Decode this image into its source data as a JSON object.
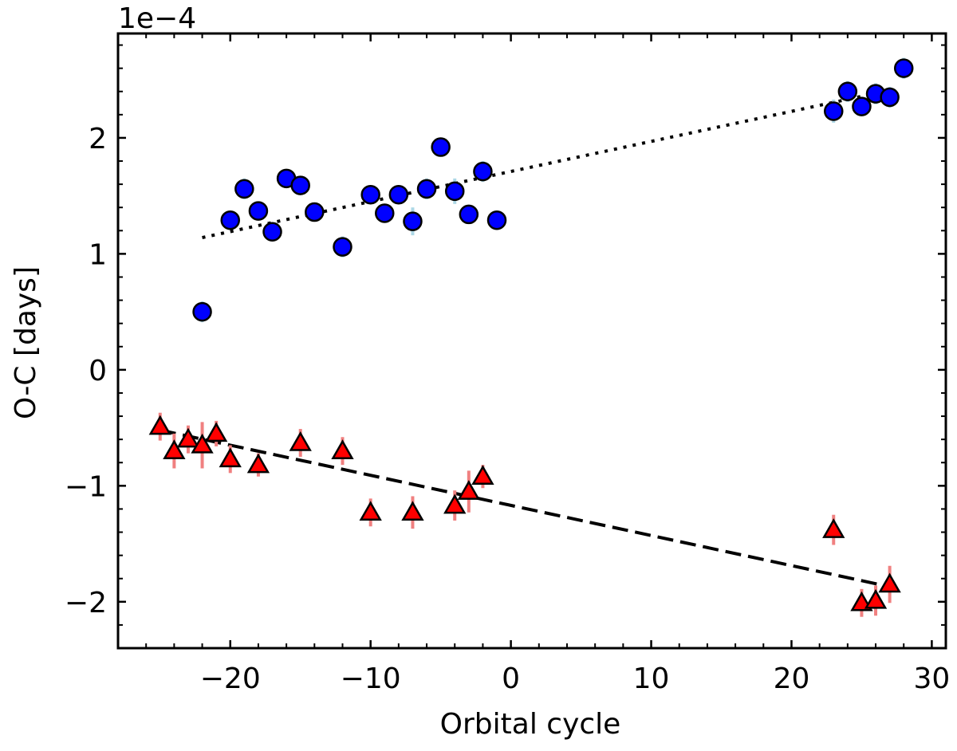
{
  "chart_data": {
    "type": "scatter",
    "title": "",
    "offset_label": "1e−4",
    "xlabel": "Orbital cycle",
    "ylabel": "O-C [days]",
    "xlim": [
      -28,
      31
    ],
    "ylim": [
      -2.4,
      2.9
    ],
    "y_scale_factor": 0.0001,
    "x_ticks": [
      -20,
      -10,
      0,
      10,
      20,
      30
    ],
    "x_tick_labels": [
      "−20",
      "−10",
      "0",
      "10",
      "20",
      "30"
    ],
    "y_ticks": [
      -2,
      -1,
      0,
      1,
      2
    ],
    "y_tick_labels": [
      "−2",
      "−1",
      "0",
      "1",
      "2"
    ],
    "grid": false,
    "series": [
      {
        "marker": "circle",
        "color": "#0000ff",
        "error_color": "#add8e6",
        "x": [
          -22,
          -20,
          -19,
          -18,
          -17,
          -16,
          -15,
          -14,
          -12,
          -10,
          -9,
          -8,
          -7,
          -6,
          -5,
          -4,
          -3,
          -2,
          -1,
          23,
          24,
          25,
          26,
          27,
          28
        ],
        "y": [
          0.5,
          1.29,
          1.56,
          1.37,
          1.19,
          1.65,
          1.59,
          1.36,
          1.06,
          1.51,
          1.35,
          1.51,
          1.28,
          1.56,
          1.92,
          1.54,
          1.34,
          1.71,
          1.29,
          2.23,
          2.4,
          2.27,
          2.38,
          2.35,
          2.6
        ],
        "yerr": [
          0.09,
          0.08,
          0.09,
          0.08,
          0.08,
          0.08,
          0.08,
          0.08,
          0.09,
          0.08,
          0.08,
          0.08,
          0.12,
          0.09,
          0.08,
          0.11,
          0.08,
          0.09,
          0.08,
          0.1,
          0.09,
          0.08,
          0.09,
          0.09,
          0.09
        ]
      },
      {
        "marker": "triangle",
        "color": "#ff0000",
        "error_color": "#f08080",
        "x": [
          -25,
          -24,
          -23,
          -22,
          -21,
          -20,
          -18,
          -15,
          -12,
          -10,
          -7,
          -4,
          -3,
          -2,
          23,
          25,
          26,
          27
        ],
        "y": [
          -0.49,
          -0.7,
          -0.6,
          -0.65,
          -0.55,
          -0.77,
          -0.82,
          -0.63,
          -0.7,
          -1.23,
          -1.23,
          -1.17,
          -1.05,
          -0.92,
          -1.38,
          -2.01,
          -1.99,
          -1.85
        ],
        "yerr": [
          0.12,
          0.15,
          0.12,
          0.2,
          0.11,
          0.12,
          0.1,
          0.12,
          0.12,
          0.12,
          0.14,
          0.13,
          0.18,
          0.1,
          0.13,
          0.12,
          0.13,
          0.16
        ]
      }
    ],
    "fit_lines": [
      {
        "style": "dotted",
        "x": [
          -22,
          27
        ],
        "y": [
          1.14,
          2.41
        ]
      },
      {
        "style": "dashed",
        "x": [
          -25,
          27
        ],
        "y": [
          -0.52,
          -1.87
        ]
      }
    ]
  }
}
